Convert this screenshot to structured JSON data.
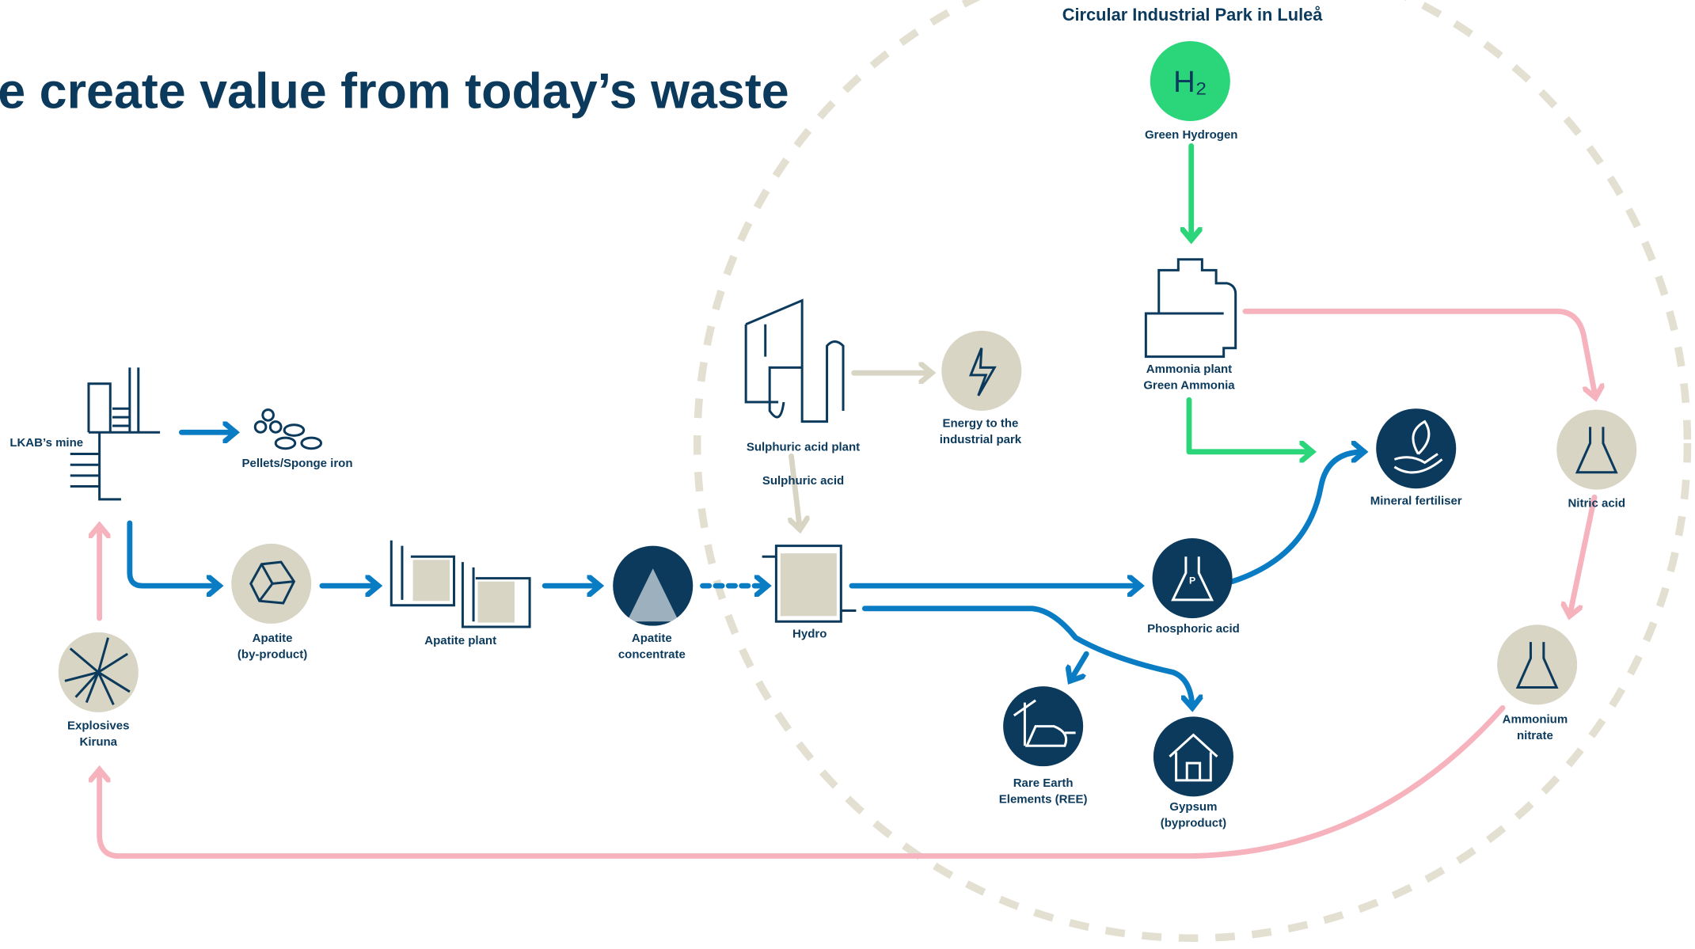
{
  "header": {
    "title": "e create value from today’s waste",
    "park_title": "Circular Industrial Park in Luleå"
  },
  "nodes": [
    {
      "icon_text": "H₂",
      "lines": [
        "Green Hydrogen"
      ]
    },
    {
      "lines": [
        "Ammonia plant",
        "Green Ammonia"
      ]
    },
    {
      "lines": [
        "LKAB’s mine"
      ]
    },
    {
      "lines": [
        "Pellets/Sponge iron"
      ]
    },
    {
      "lines": [
        "Apatite",
        "(by-product)"
      ]
    },
    {
      "lines": [
        "Apatite plant"
      ]
    },
    {
      "lines": [
        "Apatite",
        "concentrate"
      ]
    },
    {
      "lines": [
        "Sulphuric acid plant"
      ]
    },
    {
      "lines": [
        "Sulphuric acid"
      ]
    },
    {
      "lines": [
        "Energy to the",
        "industrial park"
      ]
    },
    {
      "lines": [
        "Hydro"
      ]
    },
    {
      "icon_text": "P",
      "lines": [
        "Phosphoric acid"
      ]
    },
    {
      "lines": [
        "Mineral fertiliser"
      ]
    },
    {
      "lines": [
        "Nitric acid"
      ]
    },
    {
      "lines": [
        "Ammonium",
        "nitrate"
      ]
    },
    {
      "lines": [
        "Rare Earth",
        "Elements (REE)"
      ]
    },
    {
      "lines": [
        "Gypsum",
        "(byproduct)"
      ]
    },
    {
      "lines": [
        "Explosives",
        "Kiruna"
      ]
    }
  ]
}
